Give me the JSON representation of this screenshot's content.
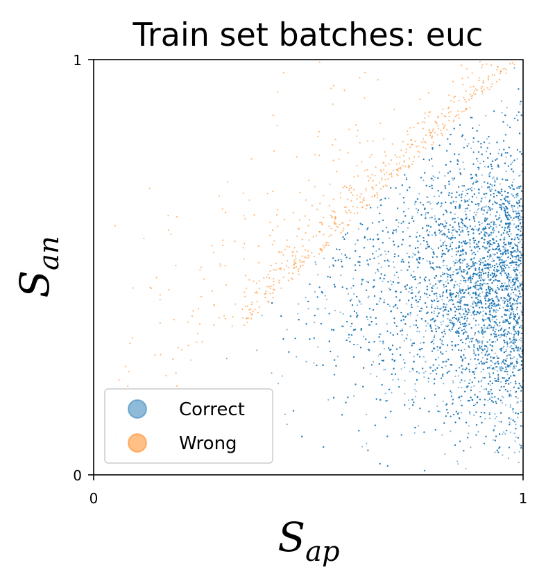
{
  "chart_data": {
    "type": "scatter",
    "title": "Train set batches: euc",
    "xlabel": {
      "main": "S",
      "sub": "ap"
    },
    "ylabel": {
      "main": "S",
      "sub": "an"
    },
    "xlim": [
      0,
      1
    ],
    "ylim": [
      0,
      1
    ],
    "x_ticks": [
      "0",
      "1"
    ],
    "y_ticks": [
      "0",
      "1"
    ],
    "grid": false,
    "legend_position": "lower-left",
    "series": [
      {
        "name": "Correct",
        "color": "#1f77b4",
        "description": "dense cloud of points below the diagonal concentrated near S_ap approx 1",
        "approx_count": 9000,
        "sample_points": [
          [
            0.98,
            0.98
          ],
          [
            0.95,
            0.9
          ],
          [
            0.9,
            0.75
          ],
          [
            0.85,
            0.6
          ],
          [
            0.97,
            0.55
          ],
          [
            0.92,
            0.5
          ],
          [
            0.99,
            0.45
          ],
          [
            0.96,
            0.35
          ],
          [
            0.94,
            0.25
          ],
          [
            0.98,
            0.1
          ],
          [
            0.99,
            0.03
          ],
          [
            0.8,
            0.45
          ],
          [
            0.7,
            0.5
          ],
          [
            0.6,
            0.45
          ],
          [
            0.5,
            0.4
          ],
          [
            0.45,
            0.35
          ],
          [
            0.38,
            0.3
          ],
          [
            0.31,
            0.28
          ],
          [
            0.43,
            0.22
          ],
          [
            0.85,
            0.15
          ]
        ]
      },
      {
        "name": "Wrong",
        "color": "#ff7f0e",
        "description": "sparse points above the diagonal (S_an greater than S_ap)",
        "approx_count": 600,
        "sample_points": [
          [
            0.05,
            0.6
          ],
          [
            0.09,
            0.33
          ],
          [
            0.13,
            0.69
          ],
          [
            0.18,
            0.58
          ],
          [
            0.3,
            0.64
          ],
          [
            0.35,
            0.52
          ],
          [
            0.42,
            0.78
          ],
          [
            0.48,
            0.68
          ],
          [
            0.55,
            0.7
          ],
          [
            0.62,
            0.8
          ],
          [
            0.7,
            0.88
          ],
          [
            0.78,
            0.92
          ],
          [
            0.86,
            0.94
          ],
          [
            0.92,
            0.96
          ],
          [
            0.97,
            0.99
          ],
          [
            0.45,
            0.55
          ],
          [
            0.5,
            0.6
          ],
          [
            0.6,
            0.66
          ],
          [
            0.25,
            0.5
          ],
          [
            0.28,
            0.41
          ]
        ]
      }
    ]
  }
}
